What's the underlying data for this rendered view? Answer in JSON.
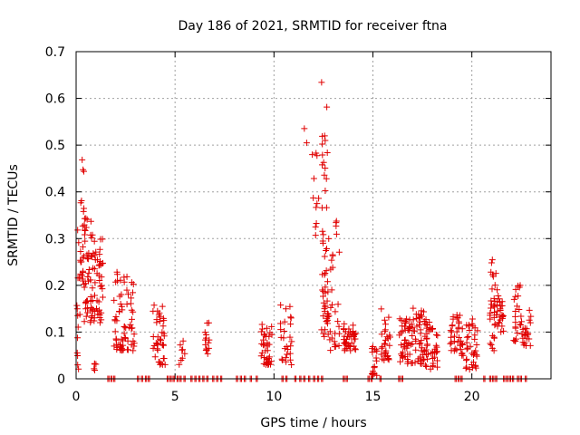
{
  "chart_data": {
    "type": "scatter",
    "title": "Day 186 of 2021, SRMTID for receiver ftna",
    "xlabel": "GPS time / hours",
    "ylabel": "SRMTID / TECUs",
    "xlim": [
      0,
      24
    ],
    "ylim": [
      0,
      0.7
    ],
    "xticks": [
      0,
      5,
      10,
      15,
      20
    ],
    "yticks": [
      0,
      0.1,
      0.2,
      0.3,
      0.4,
      0.5,
      0.6,
      0.7
    ],
    "xtick_labels": [
      "0",
      "5",
      "10",
      "15",
      "20"
    ],
    "ytick_labels": [
      "0",
      "0.1",
      "0.2",
      "0.3",
      "0.4",
      "0.5",
      "0.6",
      "0.7"
    ],
    "grid": true,
    "marker": "+",
    "color": "#e00000",
    "zero_values_x": [
      1.6,
      1.75,
      1.9,
      3.1,
      3.3,
      3.5,
      3.65,
      4.6,
      4.75,
      4.9,
      5.1,
      5.25,
      5.45,
      5.8,
      6.0,
      6.2,
      6.4,
      6.6,
      6.9,
      7.1,
      7.3,
      8.1,
      8.3,
      8.5,
      8.8,
      9.1,
      10.4,
      10.6,
      11.05,
      11.3,
      11.5,
      11.75,
      12.0,
      12.2,
      12.4,
      13.5,
      13.65,
      14.75,
      14.9,
      15.35,
      16.3,
      16.45,
      19.15,
      19.3,
      19.45,
      20.6,
      20.9,
      21.05,
      21.2,
      21.6,
      21.75,
      21.9,
      22.05,
      22.3,
      22.45,
      22.7
    ],
    "clusters": [
      {
        "x": [
          0.02,
          0.2
        ],
        "y": [
          0.02,
          0.34
        ],
        "n": 14
      },
      {
        "x": [
          0.2,
          0.4
        ],
        "y": [
          0.2,
          0.5
        ],
        "n": 22
      },
      {
        "x": [
          0.4,
          0.85
        ],
        "y": [
          0.12,
          0.35
        ],
        "n": 50
      },
      {
        "x": [
          0.85,
          1.35
        ],
        "y": [
          0.12,
          0.3
        ],
        "n": 42
      },
      {
        "x": [
          0.9,
          1.1
        ],
        "y": [
          0.01,
          0.06
        ],
        "n": 5
      },
      {
        "x": [
          1.9,
          2.2
        ],
        "y": [
          0.06,
          0.23
        ],
        "n": 20
      },
      {
        "x": [
          2.2,
          2.95
        ],
        "y": [
          0.06,
          0.22
        ],
        "n": 50
      },
      {
        "x": [
          3.8,
          4.5
        ],
        "y": [
          0.03,
          0.16
        ],
        "n": 40
      },
      {
        "x": [
          5.2,
          5.5
        ],
        "y": [
          0.03,
          0.09
        ],
        "n": 8
      },
      {
        "x": [
          6.5,
          6.75
        ],
        "y": [
          0.05,
          0.12
        ],
        "n": 14
      },
      {
        "x": [
          9.3,
          9.9
        ],
        "y": [
          0.03,
          0.12
        ],
        "n": 38
      },
      {
        "x": [
          10.3,
          10.9
        ],
        "y": [
          0.03,
          0.16
        ],
        "n": 26
      },
      {
        "x": [
          11.5,
          12.05
        ],
        "y": [
          0.45,
          0.6
        ],
        "n": 3
      },
      {
        "x": [
          11.9,
          12.4
        ],
        "y": [
          0.3,
          0.52
        ],
        "n": 10
      },
      {
        "x": [
          12.4,
          12.75
        ],
        "y": [
          0.12,
          0.64
        ],
        "n": 40
      },
      {
        "x": [
          12.4,
          12.75
        ],
        "y": [
          0.09,
          0.2
        ],
        "n": 14
      },
      {
        "x": [
          12.75,
          13.3
        ],
        "y": [
          0.06,
          0.34
        ],
        "n": 30
      },
      {
        "x": [
          13.5,
          14.2
        ],
        "y": [
          0.06,
          0.12
        ],
        "n": 40
      },
      {
        "x": [
          14.9,
          15.2
        ],
        "y": [
          0.005,
          0.07
        ],
        "n": 16
      },
      {
        "x": [
          15.4,
          15.9
        ],
        "y": [
          0.04,
          0.15
        ],
        "n": 30
      },
      {
        "x": [
          16.3,
          16.9
        ],
        "y": [
          0.03,
          0.14
        ],
        "n": 40
      },
      {
        "x": [
          16.9,
          17.6
        ],
        "y": [
          0.03,
          0.16
        ],
        "n": 45
      },
      {
        "x": [
          17.6,
          18.3
        ],
        "y": [
          0.02,
          0.13
        ],
        "n": 45
      },
      {
        "x": [
          18.9,
          19.6
        ],
        "y": [
          0.05,
          0.14
        ],
        "n": 36
      },
      {
        "x": [
          19.7,
          20.3
        ],
        "y": [
          0.02,
          0.14
        ],
        "n": 36
      },
      {
        "x": [
          20.9,
          21.3
        ],
        "y": [
          0.06,
          0.26
        ],
        "n": 36
      },
      {
        "x": [
          21.3,
          21.6
        ],
        "y": [
          0.1,
          0.18
        ],
        "n": 20
      },
      {
        "x": [
          22.1,
          22.5
        ],
        "y": [
          0.08,
          0.2
        ],
        "n": 22
      },
      {
        "x": [
          22.5,
          23.0
        ],
        "y": [
          0.07,
          0.16
        ],
        "n": 22
      }
    ]
  }
}
